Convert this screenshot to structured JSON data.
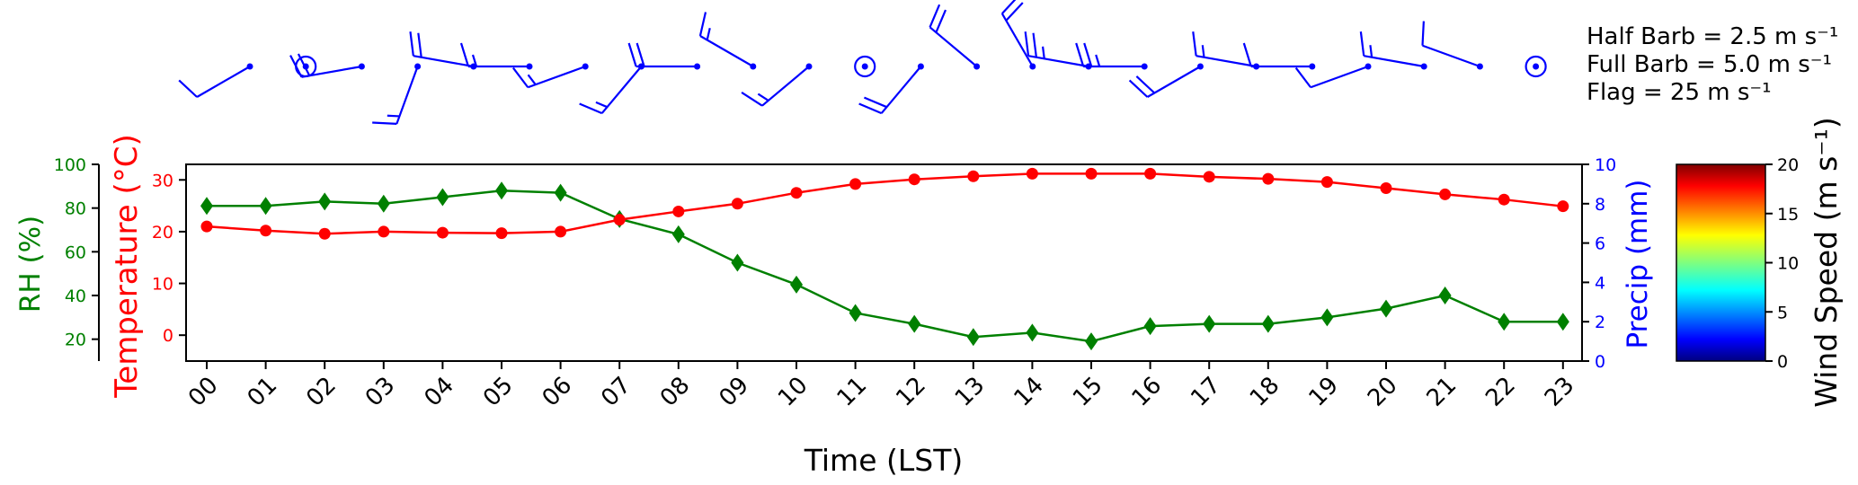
{
  "chart_data": {
    "type": "line",
    "xlabel": "Time (LST)",
    "x": [
      "00",
      "01",
      "02",
      "03",
      "04",
      "05",
      "06",
      "07",
      "08",
      "09",
      "10",
      "11",
      "12",
      "13",
      "14",
      "15",
      "16",
      "17",
      "18",
      "19",
      "20",
      "21",
      "22",
      "23"
    ],
    "axes": {
      "rh": {
        "label": "RH (%)",
        "ylim": [
          10,
          100
        ],
        "ticks": [
          20,
          40,
          60,
          80,
          100
        ],
        "color": "#008000"
      },
      "temperature": {
        "label": "Temperature (°C)",
        "ylim": [
          -5,
          33
        ],
        "ticks": [
          0,
          10,
          20,
          30
        ],
        "color": "#ff0000"
      },
      "precip": {
        "label": "Precip (mm)",
        "ylim": [
          0,
          10
        ],
        "ticks": [
          0,
          2,
          4,
          6,
          8,
          10
        ],
        "color": "#0000ff"
      }
    },
    "series": [
      {
        "axis": "rh",
        "marker": "diamond",
        "color": "#008000",
        "values": [
          81,
          81,
          83,
          82,
          85,
          88,
          87,
          75,
          68,
          55,
          45,
          32,
          27,
          21,
          23,
          19,
          26,
          27,
          27,
          30,
          34,
          40,
          28,
          28
        ]
      },
      {
        "axis": "temperature",
        "marker": "circle",
        "color": "#ff0000",
        "values": [
          21,
          20.2,
          19.6,
          20,
          19.8,
          19.7,
          20,
          22.3,
          23.9,
          25.4,
          27.5,
          29.2,
          30.1,
          30.7,
          31.2,
          31.2,
          31.2,
          30.6,
          30.2,
          29.6,
          28.4,
          27.2,
          26.2,
          24.9
        ]
      },
      {
        "axis": "precip",
        "color": "#0000ff",
        "values": [
          0,
          0,
          0,
          0,
          0,
          0,
          0,
          0,
          0,
          0,
          0,
          0,
          0,
          0,
          0,
          0,
          0,
          0,
          0,
          0,
          0,
          0,
          0,
          0
        ]
      }
    ],
    "wind": {
      "color": "#0000ff",
      "speeds": [
        5,
        0,
        10,
        7.5,
        10,
        7.5,
        7.5,
        7.5,
        10,
        7.5,
        7.5,
        0,
        10,
        10,
        10,
        12.5,
        12.5,
        10,
        7.5,
        5,
        5,
        7.5,
        5,
        0
      ],
      "directions": [
        240,
        0,
        260,
        200,
        280,
        270,
        250,
        220,
        270,
        300,
        230,
        0,
        220,
        310,
        330,
        280,
        270,
        240,
        280,
        270,
        250,
        280,
        290,
        0
      ]
    },
    "barb_legend": [
      "Half Barb = 2.5 m s⁻¹",
      "Full Barb = 5.0 m s⁻¹",
      "Flag = 25 m s⁻¹"
    ],
    "colorbar": {
      "label": "Wind Speed (m s⁻¹)",
      "range": [
        0,
        20
      ],
      "ticks": [
        0,
        5,
        10,
        15,
        20
      ]
    }
  }
}
